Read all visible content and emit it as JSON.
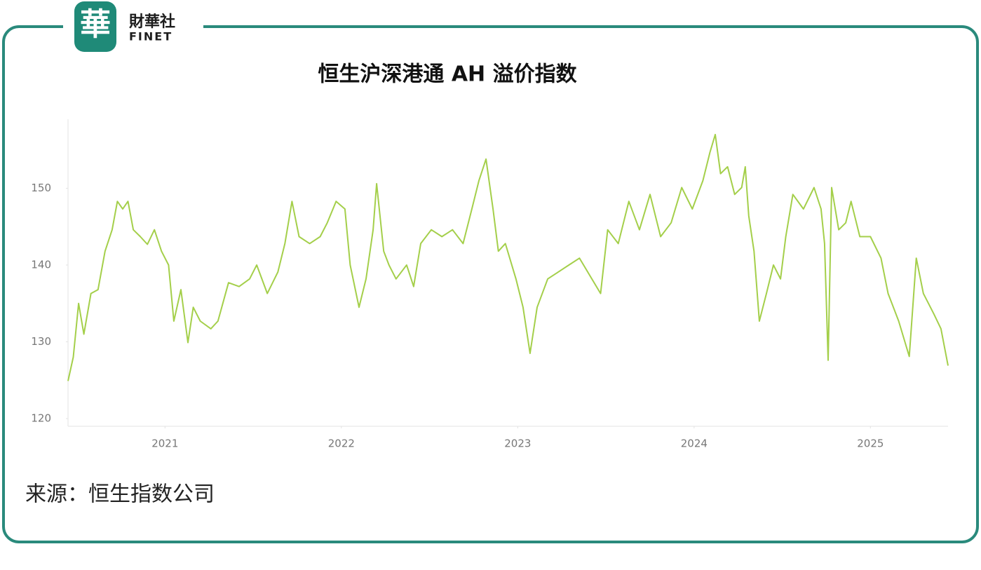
{
  "brand": {
    "logo_char": "華",
    "name_cn": "財華社",
    "name_en": "FINET"
  },
  "source": "来源：恒生指数公司",
  "chart_data": {
    "type": "line",
    "title": "恒生沪深港通 AH 溢价指数",
    "x": [
      2020.45,
      2020.48,
      2020.51,
      2020.54,
      2020.58,
      2020.62,
      2020.66,
      2020.7,
      2020.73,
      2020.76,
      2020.79,
      2020.82,
      2020.86,
      2020.9,
      2020.94,
      2020.98,
      2021.02,
      2021.05,
      2021.09,
      2021.13,
      2021.16,
      2021.2,
      2021.26,
      2021.3,
      2021.36,
      2021.42,
      2021.48,
      2021.52,
      2021.58,
      2021.64,
      2021.68,
      2021.72,
      2021.76,
      2021.82,
      2021.88,
      2021.92,
      2021.97,
      2022.02,
      2022.05,
      2022.1,
      2022.14,
      2022.18,
      2022.2,
      2022.24,
      2022.27,
      2022.31,
      2022.37,
      2022.41,
      2022.45,
      2022.51,
      2022.57,
      2022.63,
      2022.69,
      2022.74,
      2022.78,
      2022.82,
      2022.86,
      2022.89,
      2022.93,
      2022.99,
      2023.03,
      2023.07,
      2023.11,
      2023.17,
      2023.23,
      2023.29,
      2023.35,
      2023.41,
      2023.47,
      2023.51,
      2023.57,
      2023.63,
      2023.69,
      2023.75,
      2023.81,
      2023.87,
      2023.93,
      2023.99,
      2024.05,
      2024.09,
      2024.12,
      2024.15,
      2024.19,
      2024.23,
      2024.27,
      2024.29,
      2024.31,
      2024.34,
      2024.37,
      2024.41,
      2024.45,
      2024.49,
      2024.52,
      2024.56,
      2024.62,
      2024.68,
      2024.72,
      2024.74,
      2024.76,
      2024.78,
      2024.82,
      2024.86,
      2024.89,
      2024.94,
      2025.0,
      2025.06,
      2025.1,
      2025.16,
      2025.22,
      2025.26,
      2025.3,
      2025.36,
      2025.4,
      2025.44
    ],
    "series": [
      {
        "color": "#a4cf4a",
        "values": [
          124.9,
          128,
          135,
          131,
          136.3,
          136.8,
          141.8,
          144.6,
          148.3,
          147.3,
          148.3,
          144.6,
          143.7,
          142.7,
          144.6,
          141.8,
          140,
          132.7,
          136.8,
          129.9,
          134.5,
          132.7,
          131.7,
          132.7,
          137.7,
          137.2,
          138.2,
          140,
          136.3,
          139.1,
          142.8,
          148.3,
          143.7,
          142.8,
          143.7,
          145.5,
          148.3,
          147.3,
          140,
          134.5,
          138.2,
          144.6,
          150.6,
          141.8,
          140,
          138.2,
          140,
          137.2,
          142.8,
          144.6,
          143.7,
          144.6,
          142.8,
          147.3,
          151,
          153.8,
          147.3,
          141.8,
          142.8,
          138.2,
          134.5,
          128.5,
          134.5,
          138.2,
          139.1,
          140,
          140.9,
          138.6,
          136.3,
          144.6,
          142.8,
          148.3,
          144.6,
          149.2,
          143.7,
          145.5,
          150.1,
          147.3,
          151,
          154.7,
          157,
          151.9,
          152.8,
          149.2,
          150.1,
          152.8,
          146.4,
          141.8,
          132.7,
          136.3,
          140,
          138.2,
          143.7,
          149.2,
          147.3,
          150.1,
          147.3,
          142.8,
          127.6,
          150.1,
          144.6,
          145.5,
          148.3,
          143.7,
          143.7,
          140.9,
          136.3,
          132.7,
          128.1,
          140.9,
          136.3,
          133.6,
          131.7,
          126.9
        ]
      }
    ],
    "xlim": [
      2020.45,
      2025.44
    ],
    "xticks": [
      2021,
      2022,
      2023,
      2024,
      2025
    ],
    "ylim": [
      119,
      159
    ],
    "yticks": [
      120,
      130,
      140,
      150
    ],
    "grid": false
  }
}
